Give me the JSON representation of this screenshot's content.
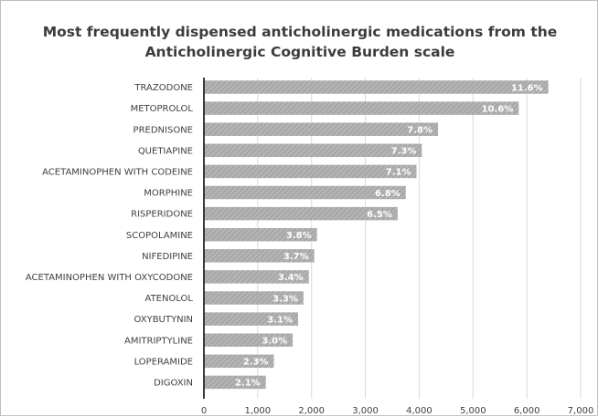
{
  "chart_data": {
    "type": "bar",
    "orientation": "horizontal",
    "title": "Most frequently dispensed anticholinergic medications from the Anticholinergic Cognitive Burden scale",
    "title_lines": [
      "Most frequently dispensed anticholinergic medications from the",
      "Anticholinergic Cognitive Burden scale"
    ],
    "categories": [
      "TRAZODONE",
      "METOPROLOL",
      "PREDNISONE",
      "QUETIAPINE",
      "ACETAMINOPHEN WITH CODEINE",
      "MORPHINE",
      "RISPERIDONE",
      "SCOPOLAMINE",
      "NIFEDIPINE",
      "ACETAMINOPHEN WITH OXYCODONE",
      "ATENOLOL",
      "OXYBUTYNIN",
      "AMITRIPTYLINE",
      "LOPERAMIDE",
      "DIGOXIN"
    ],
    "values": [
      6400,
      5850,
      4350,
      4050,
      3950,
      3750,
      3600,
      2100,
      2050,
      1950,
      1850,
      1750,
      1650,
      1300,
      1150
    ],
    "data_labels": [
      "11.6%",
      "10.6%",
      "7.8%",
      "7.3%",
      "7.1%",
      "6.8%",
      "6.5%",
      "3.8%",
      "3.7%",
      "3.4%",
      "3.3%",
      "3.1%",
      "3.0%",
      "2.3%",
      "2.1%"
    ],
    "x_ticks": [
      "0",
      "1,000",
      "2,000",
      "3,000",
      "4,000",
      "5,000",
      "6,000",
      "7,000"
    ],
    "xlim": [
      0,
      7000
    ],
    "grid": "vertical",
    "legend": "none",
    "colors": {
      "bar": "#b3b3b3",
      "bar_hatch": "#9a9a9a",
      "label_text": "#ffffff",
      "axis_text": "#404040",
      "grid": "#d9d9d9",
      "axis": "#262626",
      "title": "#3c3c3c"
    }
  }
}
